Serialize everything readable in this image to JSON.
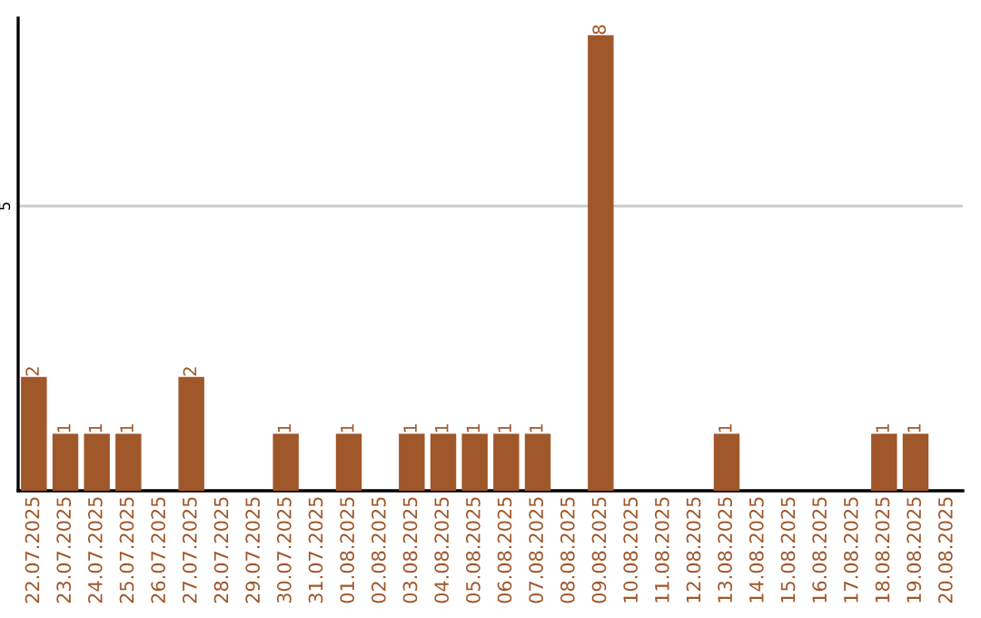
{
  "chart_data": {
    "type": "bar",
    "categories": [
      "22.07.2025",
      "23.07.2025",
      "24.07.2025",
      "25.07.2025",
      "26.07.2025",
      "27.07.2025",
      "28.07.2025",
      "29.07.2025",
      "30.07.2025",
      "31.07.2025",
      "01.08.2025",
      "02.08.2025",
      "03.08.2025",
      "04.08.2025",
      "05.08.2025",
      "06.08.2025",
      "07.08.2025",
      "08.08.2025",
      "09.08.2025",
      "10.08.2025",
      "11.08.2025",
      "12.08.2025",
      "13.08.2025",
      "14.08.2025",
      "15.08.2025",
      "16.08.2025",
      "17.08.2025",
      "18.08.2025",
      "19.08.2025",
      "20.08.2025"
    ],
    "values": [
      2,
      1,
      1,
      1,
      0,
      2,
      0,
      0,
      1,
      0,
      1,
      0,
      1,
      1,
      1,
      1,
      1,
      0,
      8,
      0,
      0,
      0,
      1,
      0,
      0,
      0,
      0,
      1,
      1,
      0
    ],
    "value_labels": [
      "2",
      "1",
      "1",
      "1",
      null,
      "2",
      null,
      null,
      "1",
      null,
      "1",
      null,
      "1",
      "1",
      "1",
      "1",
      "1",
      null,
      "8",
      null,
      null,
      null,
      "1",
      null,
      null,
      null,
      null,
      "1",
      "1",
      null
    ],
    "color": "#a0572a",
    "ylim": [
      0,
      8.3
    ],
    "yticks": [
      5
    ],
    "grid": "y",
    "legend": false
  }
}
